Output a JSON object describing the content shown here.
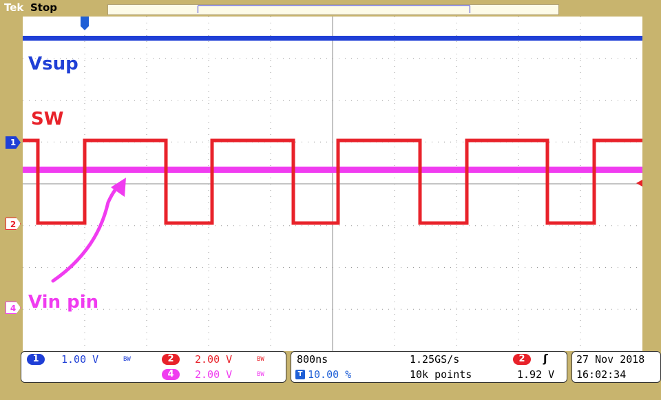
{
  "header": {
    "brand": "Tek",
    "acq_state": "Stop",
    "trigger_marker": "T"
  },
  "traces": {
    "vsup_label": "Vsup",
    "sw_label": "SW",
    "vin_label": "Vin pin"
  },
  "markers": {
    "ch1": "1",
    "ch2": "2",
    "ch4": "4"
  },
  "colors": {
    "ch1": "#1f3fd6",
    "ch2": "#e8222a",
    "ch4": "#f03cf0",
    "bezel": "#c8b46e"
  },
  "status": {
    "ch1": {
      "num": "1",
      "scale": "1.00 V",
      "bw": "BW"
    },
    "ch2": {
      "num": "2",
      "scale": "2.00 V",
      "bw": "BW"
    },
    "ch4": {
      "num": "4",
      "scale": "2.00 V",
      "bw": "BW"
    },
    "timebase": "800ns",
    "sample_rate": "1.25GS/s",
    "trigger_position": "10.00 %",
    "record_length": "10k points",
    "trigger_source": "2",
    "trigger_level": "1.92 V",
    "date": "27 Nov 2018",
    "time": "16:02:34"
  }
}
